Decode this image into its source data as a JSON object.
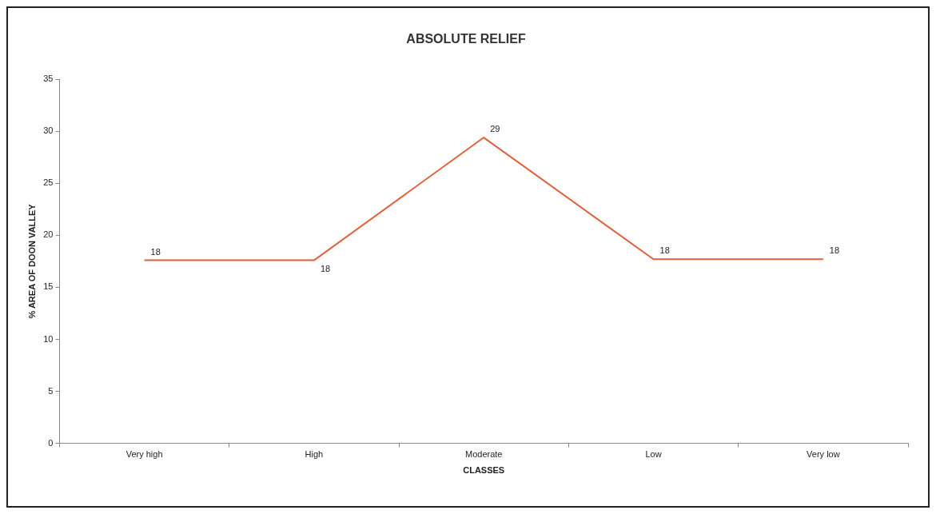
{
  "chart_data": {
    "type": "line",
    "title": "ABSOLUTE RELIEF",
    "xlabel": "CLASSES",
    "ylabel": "% AREA OF DOON VALLEY",
    "categories": [
      "Very high",
      "High",
      "Moderate",
      "Low",
      "Very low"
    ],
    "series": [
      {
        "color": "#e2603a",
        "values": [
          17.6,
          17.6,
          29.4,
          17.7,
          17.7
        ],
        "value_labels": [
          "18",
          "18",
          "29",
          "18",
          "18"
        ]
      }
    ],
    "ylim": [
      0,
      35
    ],
    "yticks": [
      0,
      5,
      10,
      15,
      20,
      25,
      30,
      35
    ],
    "grid": false,
    "legend": false,
    "marker": "none",
    "line_style": "solid"
  }
}
